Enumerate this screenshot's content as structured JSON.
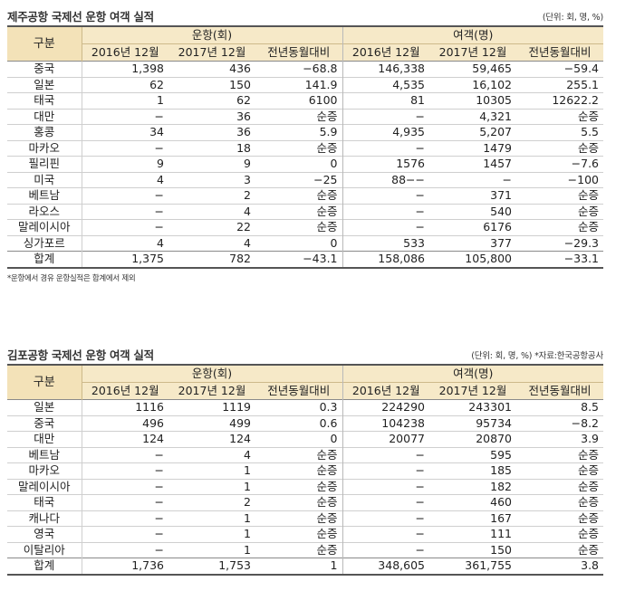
{
  "jeju": {
    "title": "제주공항 국제선 운항 여객 실적",
    "unit": "(단위: 회, 명, %)",
    "header": {
      "corner": "구분",
      "group_flights": "운항(회)",
      "group_pax": "여객(명)",
      "cols": [
        "2016년 12월",
        "2017년 12월",
        "전년동월대비",
        "2016년 12월",
        "2017년 12월",
        "전년동월대비"
      ]
    },
    "rows": [
      {
        "country": "중국",
        "v": [
          "1,398",
          "436",
          "−68.8",
          "146,338",
          "59,465",
          "−59.4"
        ]
      },
      {
        "country": "일본",
        "v": [
          "62",
          "150",
          "141.9",
          "4,535",
          "16,102",
          "255.1"
        ]
      },
      {
        "country": "태국",
        "v": [
          "1",
          "62",
          "6100",
          "81",
          "10305",
          "12622.2"
        ]
      },
      {
        "country": "대만",
        "v": [
          "−",
          "36",
          "순증",
          "−",
          "4,321",
          "순증"
        ]
      },
      {
        "country": "홍콩",
        "v": [
          "34",
          "36",
          "5.9",
          "4,935",
          "5,207",
          "5.5"
        ]
      },
      {
        "country": "마카오",
        "v": [
          "−",
          "18",
          "순증",
          "−",
          "1479",
          "순증"
        ]
      },
      {
        "country": "필리핀",
        "v": [
          "9",
          "9",
          "0",
          "1576",
          "1457",
          "−7.6"
        ]
      },
      {
        "country": "미국",
        "v": [
          "4",
          "3",
          "−25",
          "88−−",
          "−",
          "−100"
        ]
      },
      {
        "country": "베트남",
        "v": [
          "−",
          "2",
          "순증",
          "−",
          "371",
          "순증"
        ]
      },
      {
        "country": "라오스",
        "v": [
          "−",
          "4",
          "순증",
          "−",
          "540",
          "순증"
        ]
      },
      {
        "country": "말레이시아",
        "v": [
          "−",
          "22",
          "순증",
          "−",
          "6176",
          "순증"
        ]
      },
      {
        "country": "싱가포르",
        "v": [
          "4",
          "4",
          "0",
          "533",
          "377",
          "−29.3"
        ]
      }
    ],
    "total": {
      "country": "합계",
      "v": [
        "1,375",
        "782",
        "−43.1",
        "158,086",
        "105,800",
        "−33.1"
      ]
    },
    "note": "*운항에서 경유 운항실적은 합계에서 제외"
  },
  "gimpo": {
    "title": "김포공항 국제선 운항 여객 실적",
    "unit": "(단위: 회, 명, %) *자료:한국공항공사",
    "header": {
      "corner": "구분",
      "group_flights": "운항(회)",
      "group_pax": "여객(명)",
      "cols": [
        "2016년 12월",
        "2017년 12월",
        "전년동월대비",
        "2016년 12월",
        "2017년 12월",
        "전년동월대비"
      ]
    },
    "rows": [
      {
        "country": "일본",
        "v": [
          "1116",
          "1119",
          "0.3",
          "224290",
          "243301",
          "8.5"
        ]
      },
      {
        "country": "중국",
        "v": [
          "496",
          "499",
          "0.6",
          "104238",
          "95734",
          "−8.2"
        ]
      },
      {
        "country": "대만",
        "v": [
          "124",
          "124",
          "0",
          "20077",
          "20870",
          "3.9"
        ]
      },
      {
        "country": "베트남",
        "v": [
          "−",
          "4",
          "순증",
          "−",
          "595",
          "순증"
        ]
      },
      {
        "country": "마카오",
        "v": [
          "−",
          "1",
          "순증",
          "−",
          "185",
          "순증"
        ]
      },
      {
        "country": "말레이시아",
        "v": [
          "−",
          "1",
          "순증",
          "−",
          "182",
          "순증"
        ]
      },
      {
        "country": "태국",
        "v": [
          "−",
          "2",
          "순증",
          "−",
          "460",
          "순증"
        ]
      },
      {
        "country": "캐나다",
        "v": [
          "−",
          "1",
          "순증",
          "−",
          "167",
          "순증"
        ]
      },
      {
        "country": "영국",
        "v": [
          "−",
          "1",
          "순증",
          "−",
          "111",
          "순증"
        ]
      },
      {
        "country": "이탈리아",
        "v": [
          "−",
          "1",
          "순증",
          "−",
          "150",
          "순증"
        ]
      }
    ],
    "total": {
      "country": "합계",
      "v": [
        "1,736",
        "1,753",
        "1",
        "348,605",
        "361,755",
        "3.8"
      ]
    }
  }
}
